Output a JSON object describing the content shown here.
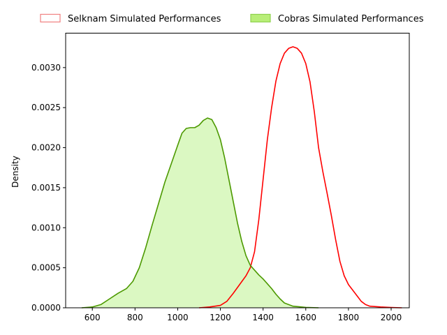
{
  "chart_data": {
    "type": "area",
    "title": "",
    "xlabel": "",
    "ylabel": "Density",
    "xlim": [
      475,
      2085
    ],
    "ylim": [
      0,
      0.00343
    ],
    "x_ticks": [
      600,
      800,
      1000,
      1200,
      1400,
      1600,
      1800,
      2000
    ],
    "x_tick_labels": [
      "600",
      "800",
      "1000",
      "1200",
      "1400",
      "1600",
      "1800",
      "2000"
    ],
    "y_ticks": [
      0,
      0.0005,
      0.001,
      0.0015,
      0.002,
      0.0025,
      0.003
    ],
    "y_tick_labels": [
      "0.0000",
      "0.0005",
      "0.0010",
      "0.0015",
      "0.0020",
      "0.0025",
      "0.0030"
    ],
    "grid": false,
    "legend_position": "top",
    "series": [
      {
        "name": "Selknam Simulated Performances",
        "line_color": "#ff0000",
        "legend_edge_color": "#f08080",
        "legend_face_color": "#ffffff",
        "fill_color": "#ffffff",
        "fill_opacity": 0,
        "points": [
          [
            1100,
            0
          ],
          [
            1150,
            1e-05
          ],
          [
            1200,
            3e-05
          ],
          [
            1230,
            8e-05
          ],
          [
            1260,
            0.00018
          ],
          [
            1290,
            0.00029
          ],
          [
            1320,
            0.0004
          ],
          [
            1340,
            0.0005
          ],
          [
            1360,
            0.0007
          ],
          [
            1380,
            0.0011
          ],
          [
            1400,
            0.0016
          ],
          [
            1420,
            0.0021
          ],
          [
            1440,
            0.0025
          ],
          [
            1460,
            0.00283
          ],
          [
            1480,
            0.00305
          ],
          [
            1500,
            0.00318
          ],
          [
            1520,
            0.00324
          ],
          [
            1540,
            0.00326
          ],
          [
            1560,
            0.00324
          ],
          [
            1580,
            0.00318
          ],
          [
            1600,
            0.00305
          ],
          [
            1620,
            0.00282
          ],
          [
            1640,
            0.00245
          ],
          [
            1660,
            0.002
          ],
          [
            1680,
            0.0017
          ],
          [
            1700,
            0.00143
          ],
          [
            1720,
            0.00115
          ],
          [
            1740,
            0.00085
          ],
          [
            1760,
            0.00058
          ],
          [
            1780,
            0.0004
          ],
          [
            1800,
            0.00029
          ],
          [
            1820,
            0.00022
          ],
          [
            1840,
            0.00015
          ],
          [
            1860,
            8e-05
          ],
          [
            1880,
            4e-05
          ],
          [
            1900,
            2e-05
          ],
          [
            1950,
            1e-05
          ],
          [
            2000,
            4e-06
          ],
          [
            2050,
            0
          ]
        ]
      },
      {
        "name": "Cobras Simulated Performances",
        "line_color": "#4c9900",
        "legend_edge_color": "#8fd14f",
        "legend_face_color": "#b8ee78",
        "fill_color": "#ccf5a8",
        "fill_opacity": 0.7,
        "points": [
          [
            550,
            0
          ],
          [
            600,
            1e-05
          ],
          [
            640,
            4e-05
          ],
          [
            680,
            0.00011
          ],
          [
            720,
            0.00018
          ],
          [
            760,
            0.00024
          ],
          [
            790,
            0.00033
          ],
          [
            820,
            0.0005
          ],
          [
            850,
            0.00075
          ],
          [
            880,
            0.00103
          ],
          [
            910,
            0.0013
          ],
          [
            940,
            0.00157
          ],
          [
            970,
            0.0018
          ],
          [
            1000,
            0.00203
          ],
          [
            1020,
            0.00218
          ],
          [
            1040,
            0.00224
          ],
          [
            1060,
            0.00225
          ],
          [
            1080,
            0.00225
          ],
          [
            1100,
            0.00228
          ],
          [
            1120,
            0.00234
          ],
          [
            1140,
            0.00237
          ],
          [
            1160,
            0.00235
          ],
          [
            1180,
            0.00225
          ],
          [
            1200,
            0.0021
          ],
          [
            1220,
            0.00187
          ],
          [
            1240,
            0.0016
          ],
          [
            1260,
            0.00133
          ],
          [
            1280,
            0.00106
          ],
          [
            1300,
            0.00083
          ],
          [
            1320,
            0.00065
          ],
          [
            1340,
            0.00053
          ],
          [
            1360,
            0.00047
          ],
          [
            1380,
            0.00041
          ],
          [
            1400,
            0.00036
          ],
          [
            1420,
            0.0003
          ],
          [
            1440,
            0.00024
          ],
          [
            1460,
            0.00017
          ],
          [
            1480,
            0.00011
          ],
          [
            1500,
            6e-05
          ],
          [
            1540,
            2e-05
          ],
          [
            1600,
            5e-06
          ],
          [
            1660,
            0
          ]
        ]
      }
    ]
  }
}
